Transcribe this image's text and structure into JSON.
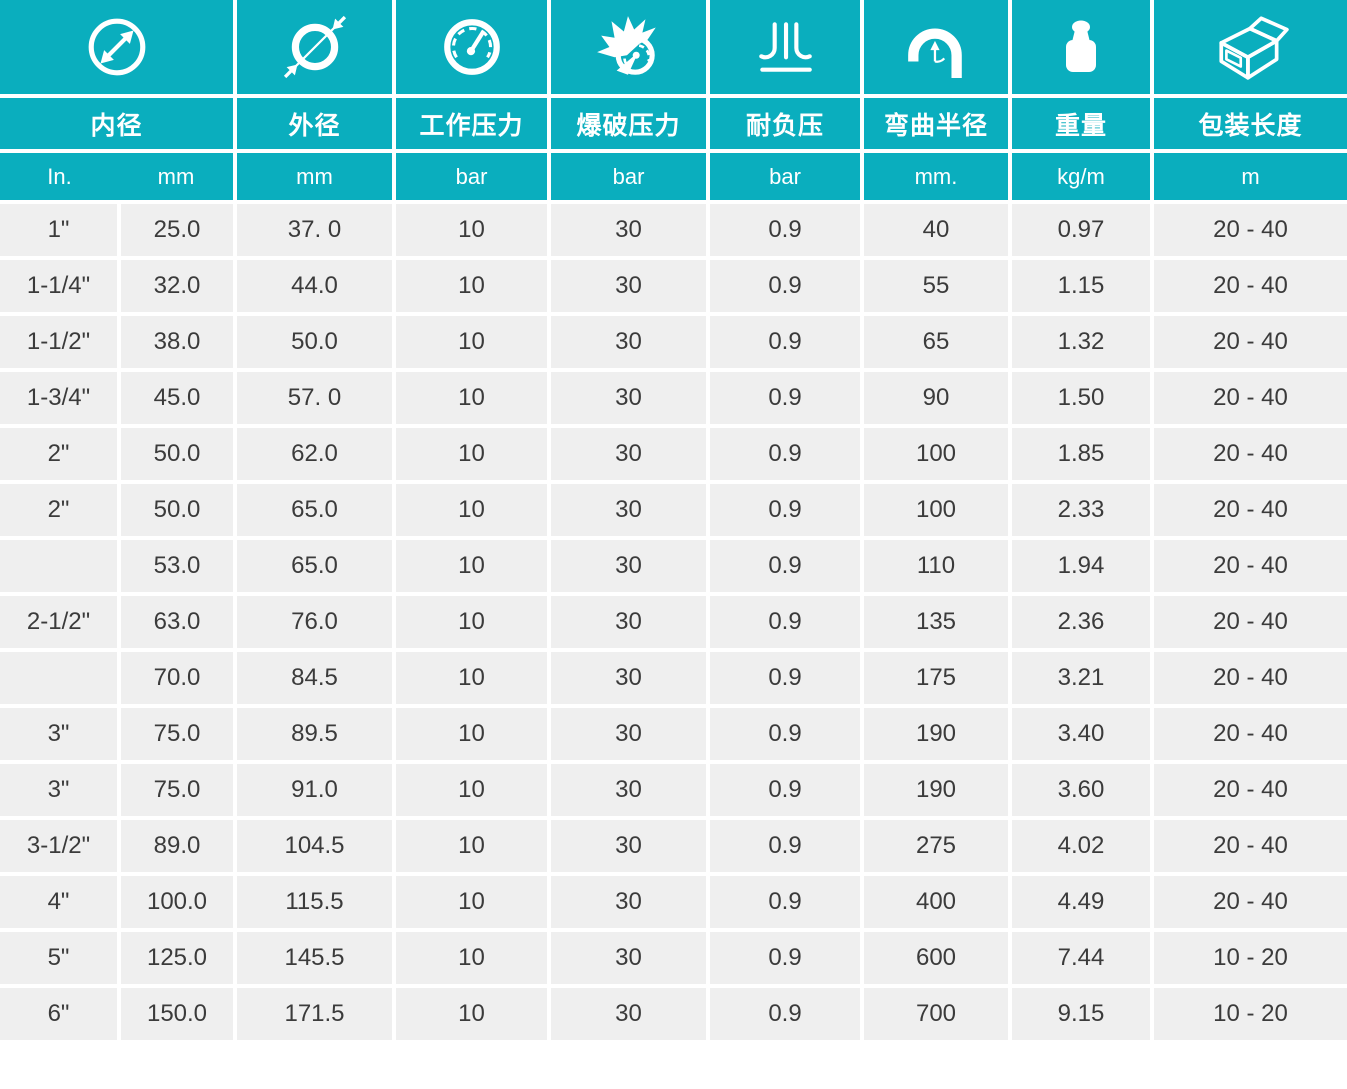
{
  "table": {
    "colors": {
      "accent": "#0aaebe",
      "row_background": "#efefef",
      "header_text": "#ffffff",
      "body_text": "#3b3b3b"
    },
    "columns": [
      {
        "label": "内径",
        "icon": "inner-diameter-icon",
        "units": {
          "a": "In.",
          "b": "mm"
        }
      },
      {
        "label": "外径",
        "icon": "outer-diameter-icon",
        "unit": "mm"
      },
      {
        "label": "工作压力",
        "icon": "pressure-gauge-icon",
        "unit": "bar"
      },
      {
        "label": "爆破压力",
        "icon": "burst-pressure-icon",
        "unit": "bar"
      },
      {
        "label": "耐负压",
        "icon": "vacuum-resistance-icon",
        "unit": "bar"
      },
      {
        "label": "弯曲半径",
        "icon": "bend-radius-icon",
        "unit": "mm."
      },
      {
        "label": "重量",
        "icon": "weight-icon",
        "unit": "kg/m"
      },
      {
        "label": "包装长度",
        "icon": "package-length-icon",
        "unit": "m"
      }
    ],
    "rows": [
      [
        "1\"",
        "25.0",
        "37. 0",
        "10",
        "30",
        "0.9",
        "40",
        "0.97",
        "20 - 40"
      ],
      [
        "1-1/4\"",
        "32.0",
        "44.0",
        "10",
        "30",
        "0.9",
        "55",
        "1.15",
        "20 - 40"
      ],
      [
        "1-1/2\"",
        "38.0",
        "50.0",
        "10",
        "30",
        "0.9",
        "65",
        "1.32",
        "20 - 40"
      ],
      [
        "1-3/4\"",
        "45.0",
        "57. 0",
        "10",
        "30",
        "0.9",
        "90",
        "1.50",
        "20 - 40"
      ],
      [
        "2\"",
        "50.0",
        "62.0",
        "10",
        "30",
        "0.9",
        "100",
        "1.85",
        "20 - 40"
      ],
      [
        "2\"",
        "50.0",
        "65.0",
        "10",
        "30",
        "0.9",
        "100",
        "2.33",
        "20 - 40"
      ],
      [
        "",
        "53.0",
        "65.0",
        "10",
        "30",
        "0.9",
        "110",
        "1.94",
        "20 - 40"
      ],
      [
        "2-1/2\"",
        "63.0",
        "76.0",
        "10",
        "30",
        "0.9",
        "135",
        "2.36",
        "20 - 40"
      ],
      [
        "",
        "70.0",
        "84.5",
        "10",
        "30",
        "0.9",
        "175",
        "3.21",
        "20 - 40"
      ],
      [
        "3\"",
        "75.0",
        "89.5",
        "10",
        "30",
        "0.9",
        "190",
        "3.40",
        "20 - 40"
      ],
      [
        "3\"",
        "75.0",
        "91.0",
        "10",
        "30",
        "0.9",
        "190",
        "3.60",
        "20 - 40"
      ],
      [
        "3-1/2\"",
        "89.0",
        "104.5",
        "10",
        "30",
        "0.9",
        "275",
        "4.02",
        "20 - 40"
      ],
      [
        "4\"",
        "100.0",
        "115.5",
        "10",
        "30",
        "0.9",
        "400",
        "4.49",
        "20 - 40"
      ],
      [
        "5\"",
        "125.0",
        "145.5",
        "10",
        "30",
        "0.9",
        "600",
        "7.44",
        "10 - 20"
      ],
      [
        "6\"",
        "150.0",
        "171.5",
        "10",
        "30",
        "0.9",
        "700",
        "9.15",
        "10 - 20"
      ]
    ]
  }
}
